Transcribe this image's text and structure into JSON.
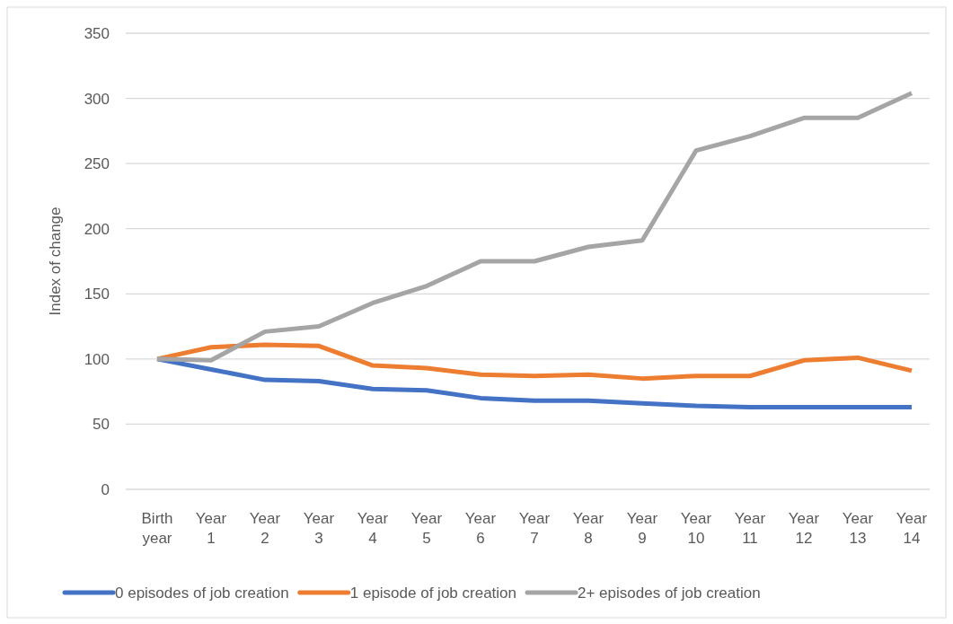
{
  "chart_data": {
    "type": "line",
    "ylabel": "Index of change",
    "categories": [
      "Birth\nyear",
      "Year\n1",
      "Year\n2",
      "Year\n3",
      "Year\n4",
      "Year\n5",
      "Year\n6",
      "Year\n7",
      "Year\n8",
      "Year\n9",
      "Year\n10",
      "Year\n11",
      "Year\n12",
      "Year\n13",
      "Year\n14"
    ],
    "series": [
      {
        "name": "0 episodes of job creation",
        "color": "#4472c4",
        "values": [
          100,
          92,
          84,
          83,
          77,
          76,
          70,
          68,
          68,
          66,
          64,
          63,
          63,
          63,
          63
        ]
      },
      {
        "name": "1 episode of job creation",
        "color": "#ed7d31",
        "values": [
          100,
          109,
          111,
          110,
          95,
          93,
          88,
          87,
          88,
          85,
          87,
          87,
          99,
          101,
          91
        ]
      },
      {
        "name": "2+ episodes of job creation",
        "color": "#a5a5a5",
        "values": [
          100,
          99,
          121,
          125,
          143,
          156,
          175,
          175,
          186,
          191,
          260,
          271,
          285,
          285,
          304
        ]
      }
    ],
    "ylim": [
      0,
      350
    ],
    "yticks": [
      0,
      50,
      100,
      150,
      200,
      250,
      300,
      350
    ],
    "grid": "y",
    "legend": "bottom",
    "marker": "none",
    "line_style": "solid"
  }
}
